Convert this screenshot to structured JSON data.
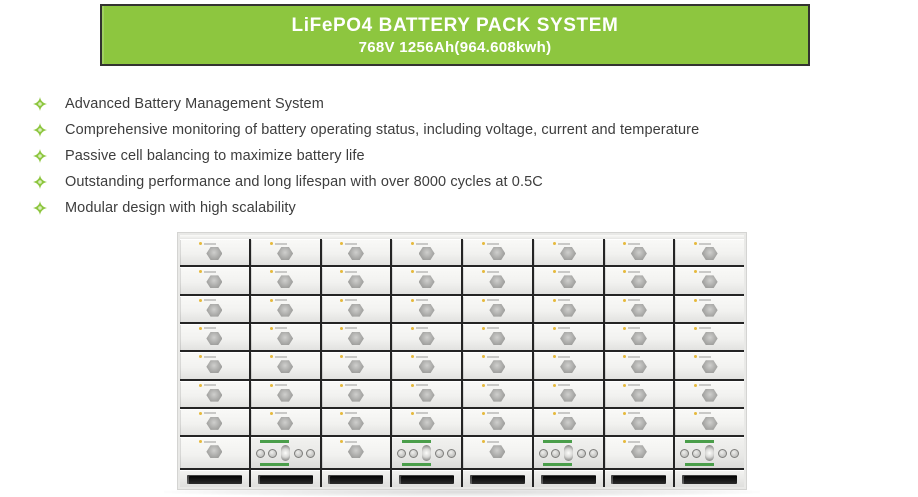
{
  "header": {
    "title": "LiFePO4 BATTERY PACK SYSTEM",
    "subtitle": "768V 1256Ah(964.608kwh)",
    "background_color": "#8dc63f",
    "text_color": "#ffffff"
  },
  "features": {
    "bullet_icon": "four-point-star-icon",
    "bullet_color": "#8dc63f",
    "items": [
      "Advanced Battery Management System",
      "Comprehensive monitoring of battery operating status, including voltage, current and temperature",
      "Passive cell balancing to maximize battery life",
      "Outstanding performance and long lifespan with over 8000 cycles at 0.5C",
      "Modular design with high scalability"
    ]
  },
  "battery_cabinet": {
    "columns": 8,
    "module_rows": 8,
    "bms_module_columns": [
      2,
      4,
      6,
      8
    ],
    "module_face_color": "#f2f2f0",
    "seam_color": "#242424",
    "handle_shape": "hexagon",
    "handle_color": "#a9a9a7",
    "bms_accent_color": "#4a9e4a",
    "brand_dot_color": "#e6b93c"
  }
}
